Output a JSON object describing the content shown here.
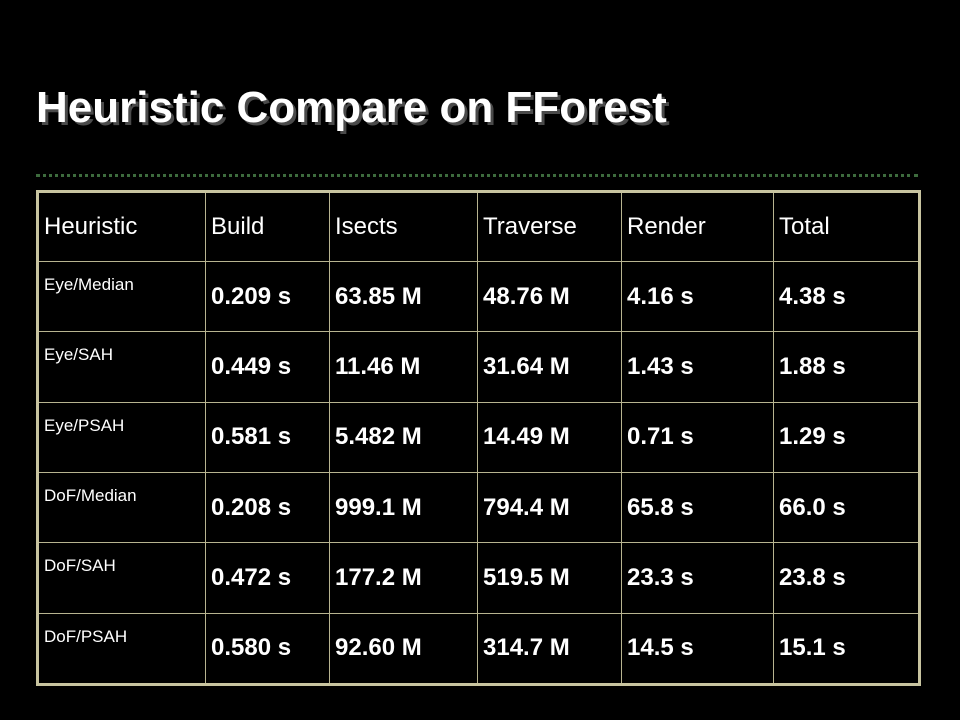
{
  "slide": {
    "title": "Heuristic Compare on FForest"
  },
  "table": {
    "headers": [
      "Heuristic",
      "Build",
      "Isects",
      "Traverse",
      "Render",
      "Total"
    ],
    "rows": [
      [
        "Eye/Median",
        "0.209 s",
        "63.85 M",
        "48.76 M",
        "4.16 s",
        "4.38 s"
      ],
      [
        "Eye/SAH",
        "0.449 s",
        "11.46 M",
        "31.64 M",
        "1.43 s",
        "1.88 s"
      ],
      [
        "Eye/PSAH",
        "0.581 s",
        "5.482 M",
        "14.49 M",
        "0.71 s",
        "1.29 s"
      ],
      [
        "DoF/Median",
        "0.208 s",
        "999.1 M",
        "794.4 M",
        "65.8 s",
        "66.0 s"
      ],
      [
        "DoF/SAH",
        "0.472 s",
        "177.2 M",
        "519.5 M",
        "23.3 s",
        "23.8 s"
      ],
      [
        "DoF/PSAH",
        "0.580 s",
        "92.60 M",
        "314.7 M",
        "14.5 s",
        "15.1 s"
      ]
    ]
  },
  "colors": {
    "background": "#000000",
    "text": "#ffffff",
    "table_border": "#c8c4a0",
    "title_rule": "#3d6b3d"
  }
}
